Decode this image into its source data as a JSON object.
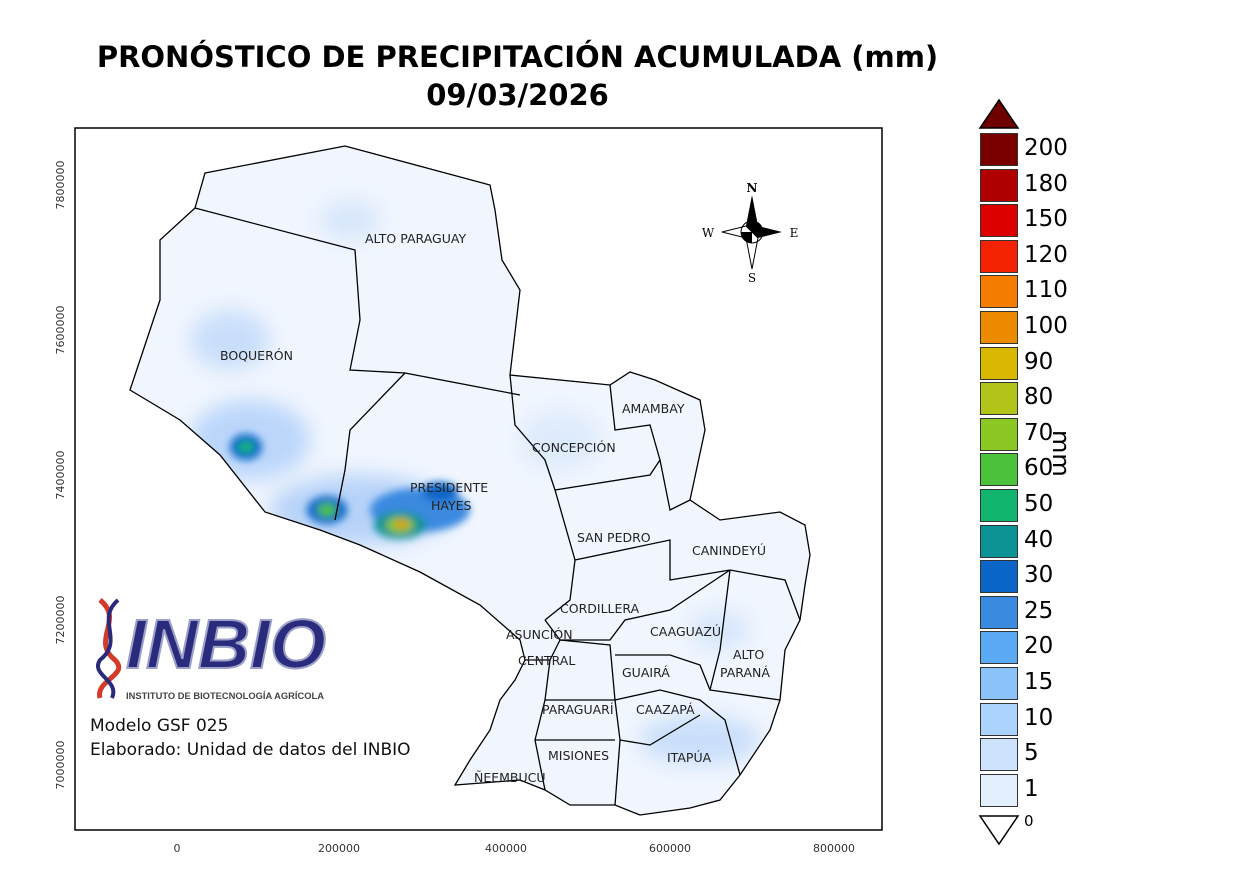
{
  "title": {
    "line1": "PRONÓSTICO DE PRECIPITACIÓN ACUMULADA (mm)",
    "line2": "09/03/2026"
  },
  "axes": {
    "x_ticks": [
      "0",
      "200000",
      "400000",
      "600000",
      "800000"
    ],
    "y_ticks": [
      "7800000",
      "7600000",
      "7400000",
      "7200000",
      "7000000"
    ]
  },
  "departments": {
    "alto_paraguay": "ALTO PARAGUAY",
    "boqueron": "BOQUERÓN",
    "presidente_hayes_1": "PRESIDENTE",
    "presidente_hayes_2": "HAYES",
    "concepcion": "CONCEPCIÓN",
    "amambay": "AMAMBAY",
    "san_pedro": "SAN PEDRO",
    "canindeyu": "CANINDEYÚ",
    "cordillera": "CORDILLERA",
    "asuncion": "ASUNCIÓN",
    "central": "CENTRAL",
    "caaguazu": "CAAGUAZÚ",
    "alto_parana_1": "ALTO",
    "alto_parana_2": "PARANÁ",
    "guaira": "GUAIRÁ",
    "paraguari": "PARAGUARÍ",
    "caazapa": "CAAZAPÁ",
    "misiones": "MISIONES",
    "itapua": "ITAPÚA",
    "neembucu": "ÑEEMBUCÚ"
  },
  "compass": {
    "n": "N",
    "s": "S",
    "e": "E",
    "w": "W"
  },
  "logo": {
    "name": "INBIO",
    "subtitle": "INSTITUTO DE BIOTECNOLOGÍA AGRÍCOLA"
  },
  "credits": {
    "model": "Modelo GSF 025",
    "made_by": "Elaborado: Unidad de datos del INBIO"
  },
  "legend": {
    "unit": "mm",
    "over_color": "#6e0000",
    "under_label": "0",
    "items": [
      {
        "label": "200",
        "color": "#7a0000"
      },
      {
        "label": "180",
        "color": "#b00000"
      },
      {
        "label": "150",
        "color": "#dc0000"
      },
      {
        "label": "120",
        "color": "#f42200"
      },
      {
        "label": "110",
        "color": "#f47d00"
      },
      {
        "label": "100",
        "color": "#ec8b00"
      },
      {
        "label": "90",
        "color": "#d8b800"
      },
      {
        "label": "80",
        "color": "#b2c41a"
      },
      {
        "label": "70",
        "color": "#8cc824"
      },
      {
        "label": "60",
        "color": "#4cc13c"
      },
      {
        "label": "50",
        "color": "#12b56e"
      },
      {
        "label": "40",
        "color": "#0b9396"
      },
      {
        "label": "30",
        "color": "#0c66c8"
      },
      {
        "label": "25",
        "color": "#3a8ae0"
      },
      {
        "label": "20",
        "color": "#5aa9f5"
      },
      {
        "label": "15",
        "color": "#8cc3fa"
      },
      {
        "label": "10",
        "color": "#acd3fc"
      },
      {
        "label": "5",
        "color": "#cde3fc"
      },
      {
        "label": "1",
        "color": "#e4effd"
      }
    ]
  }
}
